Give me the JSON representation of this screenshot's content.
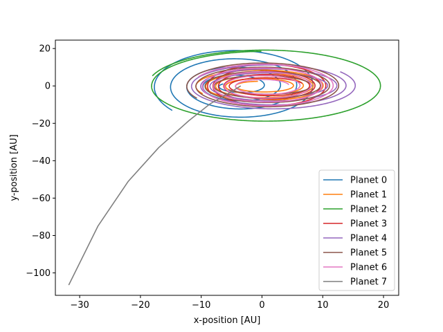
{
  "chart_data": {
    "type": "line",
    "title": "",
    "xlabel": "x-position [AU]",
    "ylabel": "y-position [AU]",
    "xlim": [
      -34,
      22.5
    ],
    "ylim": [
      -112,
      24.5
    ],
    "xticks": [
      -30,
      -20,
      -10,
      0,
      10,
      20
    ],
    "yticks": [
      20,
      0,
      -20,
      -40,
      -60,
      -80,
      -100
    ],
    "xtick_labels": [
      "−30",
      "−20",
      "−10",
      "0",
      "10",
      "20"
    ],
    "ytick_labels": [
      "20",
      "0",
      "−20",
      "−40",
      "−60",
      "−80",
      "−100"
    ],
    "grid": false,
    "legend_position": "lower right",
    "series": [
      {
        "name": "Planet 0",
        "color": "#1f77b4",
        "kind": "spiral",
        "cx": -4,
        "rx_start": 2.8,
        "rx_end": 14,
        "ry_start": 2.0,
        "ry_end": 20.5,
        "turns": 4.2,
        "end": [
          -22.5,
          -22.5
        ]
      },
      {
        "name": "Planet 1",
        "color": "#ff7f0e",
        "kind": "spiral",
        "cx": 0,
        "rx_start": 4,
        "rx_end": 11,
        "ry_start": 2.5,
        "ry_end": 9,
        "turns": 4.3,
        "end": [
          -7,
          -3
        ]
      },
      {
        "name": "Planet 2",
        "color": "#2ca02c",
        "kind": "spiral",
        "cx": 0.5,
        "rx_start": 18.5,
        "rx_end": 19.3,
        "ry_start": 18.5,
        "ry_end": 19.3,
        "turns": 1.2,
        "end": [
          -18.5,
          5.5
        ]
      },
      {
        "name": "Planet 3",
        "color": "#d62728",
        "kind": "spiral",
        "cx": 1,
        "rx_start": 6,
        "rx_end": 10,
        "ry_start": 4,
        "ry_end": 12,
        "turns": 4.5,
        "end": [
          -8,
          -4
        ]
      },
      {
        "name": "Planet 4",
        "color": "#9467bd",
        "kind": "spiral",
        "cx": 1.5,
        "rx_start": 9,
        "rx_end": 14,
        "ry_start": 6,
        "ry_end": 13,
        "turns": 3.3,
        "end": [
          13.5,
          8
        ]
      },
      {
        "name": "Planet 5",
        "color": "#8c564b",
        "kind": "spiral",
        "cx": 0.5,
        "rx_start": 7,
        "rx_end": 13,
        "ry_start": 4,
        "ry_end": 13,
        "turns": 4.0,
        "end": [
          -8,
          -5
        ]
      },
      {
        "name": "Planet 6",
        "color": "#e377c2",
        "kind": "spiral",
        "cx": 0.5,
        "rx_start": 4,
        "rx_end": 12,
        "ry_start": 3,
        "ry_end": 12,
        "turns": 4.4,
        "end": [
          -4,
          2
        ]
      },
      {
        "name": "Planet 7",
        "color": "#7f7f7f",
        "kind": "arc",
        "points": [
          [
            -31.8,
            -106.5
          ],
          [
            -27,
            -75
          ],
          [
            -22,
            -51
          ],
          [
            -17,
            -33
          ],
          [
            -12,
            -18.5
          ],
          [
            -8.5,
            -9.5
          ],
          [
            -5,
            -3
          ],
          [
            -3.5,
            0
          ]
        ]
      }
    ]
  }
}
